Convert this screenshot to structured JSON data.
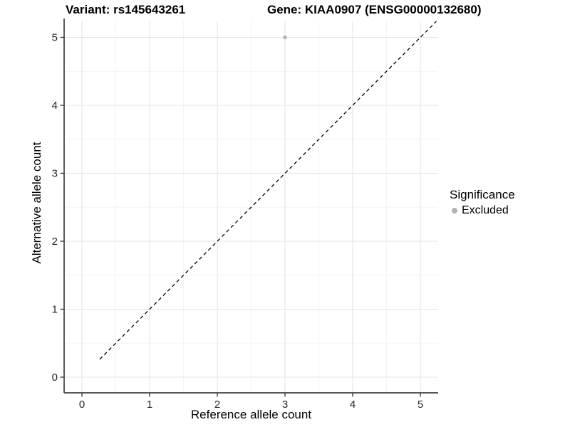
{
  "chart_data": {
    "type": "scatter",
    "title_left": "Variant: rs145643261",
    "title_right": "Gene: KIAA0907 (ENSG00000132680)",
    "xlabel": "Reference allele count",
    "ylabel": "Alternative allele count",
    "xlim": [
      -0.25,
      5.25
    ],
    "ylim": [
      -0.25,
      5.25
    ],
    "x_ticks": [
      0,
      1,
      2,
      3,
      4,
      5
    ],
    "y_ticks": [
      0,
      1,
      2,
      3,
      4,
      5
    ],
    "minor_ticks_x": [
      0.5,
      1.5,
      2.5,
      3.5,
      4.5
    ],
    "minor_ticks_y": [
      0.5,
      1.5,
      2.5,
      3.5,
      4.5
    ],
    "grid": true,
    "series": [
      {
        "name": "Excluded",
        "color": "#b2b2b2",
        "points": [
          {
            "x": 3,
            "y": 5
          }
        ]
      }
    ],
    "reference_line": {
      "type": "identity",
      "equation": "y = x",
      "style": "dashed",
      "color": "#000000"
    },
    "legend": {
      "title": "Significance",
      "position": "right",
      "items": [
        {
          "label": "Excluded",
          "color": "#b2b2b2",
          "marker": "dot"
        }
      ]
    },
    "style": {
      "background": "#ffffff",
      "grid_major_color": "#e4e4e4",
      "grid_minor_color": "#f3f3f3",
      "axis_line_color": "#404040",
      "tick_label_color": "#262626",
      "point_color": "#b2b2b2"
    }
  }
}
